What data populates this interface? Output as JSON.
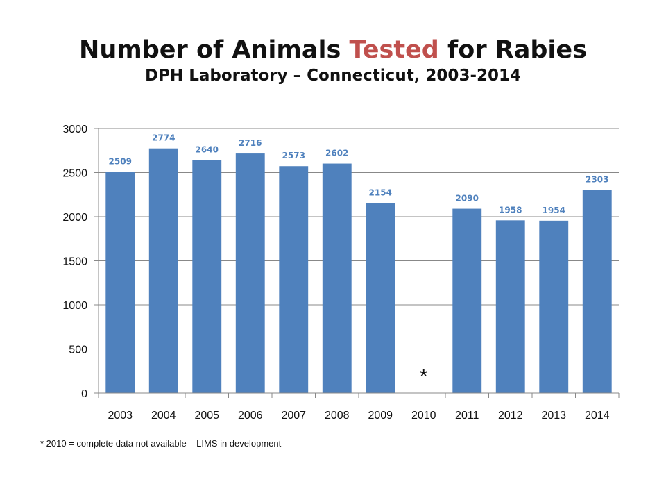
{
  "title": {
    "part1": "Number of Animals ",
    "highlight": "Tested",
    "part2": " for Rabies",
    "highlight_color": "#c0504d"
  },
  "subtitle": "DPH Laboratory – Connecticut, 2003-2014",
  "footnote": "* 2010 = complete data not available – LIMS in development",
  "chart_data": {
    "type": "bar",
    "categories": [
      "2003",
      "2004",
      "2005",
      "2006",
      "2007",
      "2008",
      "2009",
      "2010",
      "2011",
      "2012",
      "2013",
      "2014"
    ],
    "values": [
      2509,
      2774,
      2640,
      2716,
      2573,
      2602,
      2154,
      null,
      2090,
      1958,
      1954,
      2303
    ],
    "data_labels": [
      "2509",
      "2774",
      "2640",
      "2716",
      "2573",
      "2602",
      "2154",
      "",
      "2090",
      "1958",
      "1954",
      "2303"
    ],
    "missing_marker": {
      "category": "2010",
      "text": "*"
    },
    "ylim": [
      0,
      3000
    ],
    "yticks": [
      0,
      500,
      1000,
      1500,
      2000,
      2500,
      3000
    ],
    "grid": true,
    "bar_color": "#4f81bd",
    "label_color": "#4f81bd",
    "legend": "none"
  }
}
